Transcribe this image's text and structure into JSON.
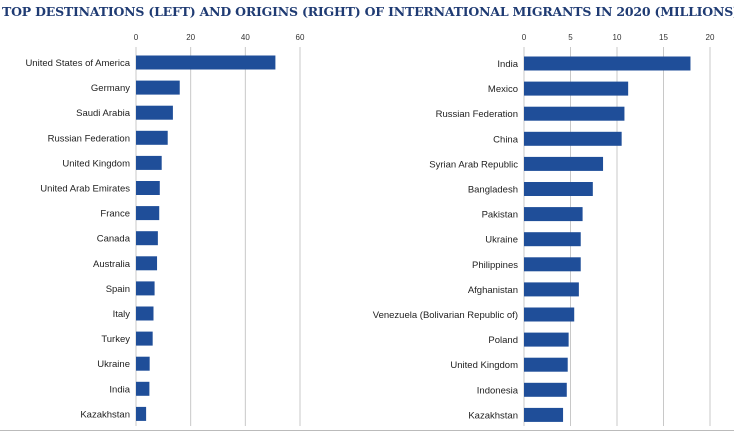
{
  "title": "TOP DESTINATIONS (LEFT) AND ORIGINS (RIGHT) OF INTERNATIONAL MIGRANTS IN 2020 (MILLIONS)",
  "colors": {
    "bar": "#1f4e99",
    "grid": "#c8c8c8",
    "title": "#1f3b73"
  },
  "chart_data": [
    {
      "type": "bar",
      "orientation": "horizontal",
      "xlim": [
        0,
        60
      ],
      "xticks": [
        0,
        20,
        40,
        60
      ],
      "grid": true,
      "categories": [
        "United States of America",
        "Germany",
        "Saudi Arabia",
        "Russian Federation",
        "United Kingdom",
        "United Arab Emirates",
        "France",
        "Canada",
        "Australia",
        "Spain",
        "Italy",
        "Turkey",
        "Ukraine",
        "India",
        "Kazakhstan"
      ],
      "values": [
        51,
        16,
        13.5,
        11.6,
        9.4,
        8.7,
        8.5,
        8.0,
        7.7,
        6.8,
        6.4,
        6.1,
        5.0,
        4.9,
        3.7
      ]
    },
    {
      "type": "bar",
      "orientation": "horizontal",
      "xlim": [
        0,
        20
      ],
      "xticks": [
        0,
        5,
        10,
        15,
        20
      ],
      "grid": true,
      "categories": [
        "India",
        "Mexico",
        "Russian Federation",
        "China",
        "Syrian Arab Republic",
        "Bangladesh",
        "Pakistan",
        "Ukraine",
        "Philippines",
        "Afghanistan",
        "Venezuela (Bolivarian Republic of)",
        "Poland",
        "United Kingdom",
        "Indonesia",
        "Kazakhstan"
      ],
      "values": [
        17.9,
        11.2,
        10.8,
        10.5,
        8.5,
        7.4,
        6.3,
        6.1,
        6.1,
        5.9,
        5.4,
        4.8,
        4.7,
        4.6,
        4.2
      ]
    }
  ]
}
